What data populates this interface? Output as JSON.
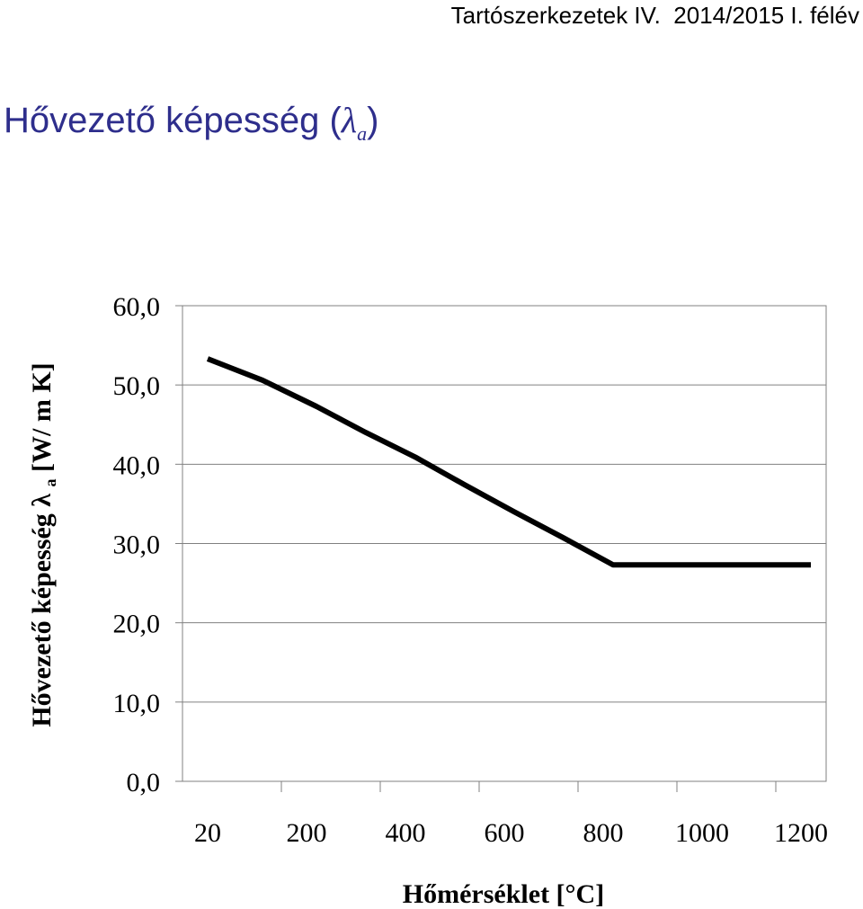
{
  "header": {
    "course": "Tartószerkezetek IV.",
    "term": "2014/2015 I. félév"
  },
  "page": {
    "title_text": "Hővezető képesség",
    "title_symbol": "λ",
    "title_subscript": "a"
  },
  "chart_data": {
    "type": "line",
    "xlabel": "Hőmérséklet [°C]",
    "ylabel_text": "Hővezető képesség",
    "ylabel_symbol": "λ",
    "ylabel_subscript": "a",
    "ylabel_unit": "[W/ m K]",
    "ylim": [
      0,
      60
    ],
    "y_ticks": [
      "0,0",
      "10,0",
      "20,0",
      "30,0",
      "40,0",
      "50,0",
      "60,0"
    ],
    "x_tick_labels": [
      "20",
      "200",
      "400",
      "600",
      "800",
      "1000",
      "1200"
    ],
    "x_ticks": [
      20,
      200,
      400,
      600,
      800,
      1000,
      1200
    ],
    "grid": true,
    "legend": "none",
    "line_color": "#000000",
    "series": [
      {
        "x": [
          20,
          120,
          220,
          320,
          420,
          520,
          620,
          720,
          820,
          920,
          1020,
          1120,
          1220
        ],
        "y": [
          53.3,
          50.6,
          47.3,
          44.0,
          40.9,
          37.4,
          34.0,
          30.7,
          27.3,
          27.3,
          27.3,
          27.3,
          27.3
        ]
      }
    ]
  }
}
